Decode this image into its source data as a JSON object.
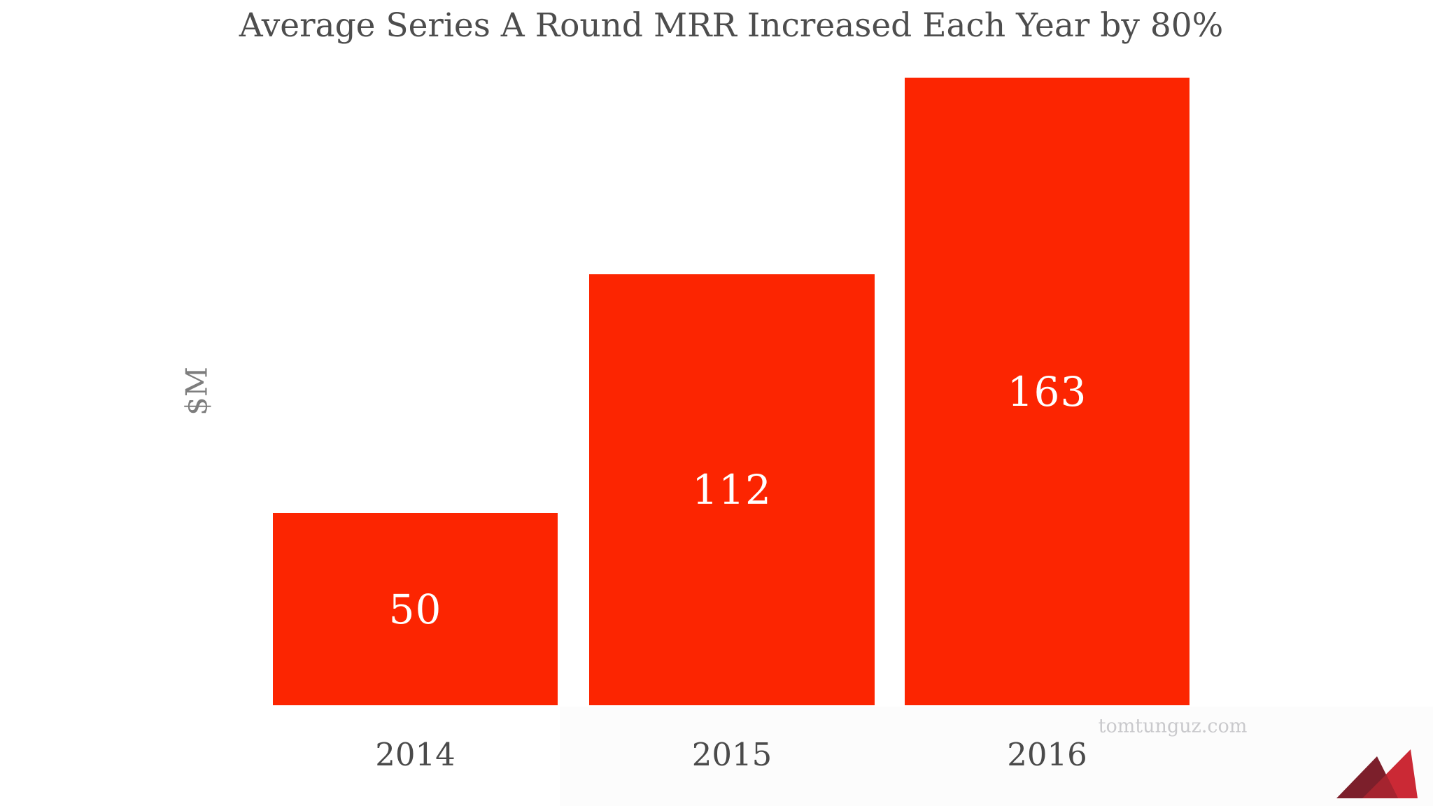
{
  "chart_data": {
    "type": "bar",
    "title": "Average Series A Round MRR Increased Each Year by 80%",
    "xlabel": "",
    "ylabel": "$M",
    "categories": [
      "2014",
      "2015",
      "2016"
    ],
    "values": [
      50,
      112,
      163
    ],
    "bar_labels": [
      "50",
      "112",
      "163"
    ],
    "ylim": [
      0,
      170
    ],
    "grid": false,
    "legend": false,
    "bar_label_position": "center-of-bar",
    "axis_lines": false
  },
  "watermark": "tomtunguz.com",
  "logo": {
    "name": "tomtunguz-mountain-logo"
  },
  "colors": {
    "background": "#ffffff",
    "panel": "#fcfcfc",
    "bar": "#fc2501",
    "title_text": "#4d4d4d",
    "axis_text": "#4a4a4a",
    "ylabel_text": "#7d7d7d",
    "bar_label_text": "#ffffff",
    "watermark_text": "#c9c9cc",
    "logo_dark": "#7c1f2b",
    "logo_bright": "#cb2935",
    "logo_overlap": "#a5242f"
  }
}
